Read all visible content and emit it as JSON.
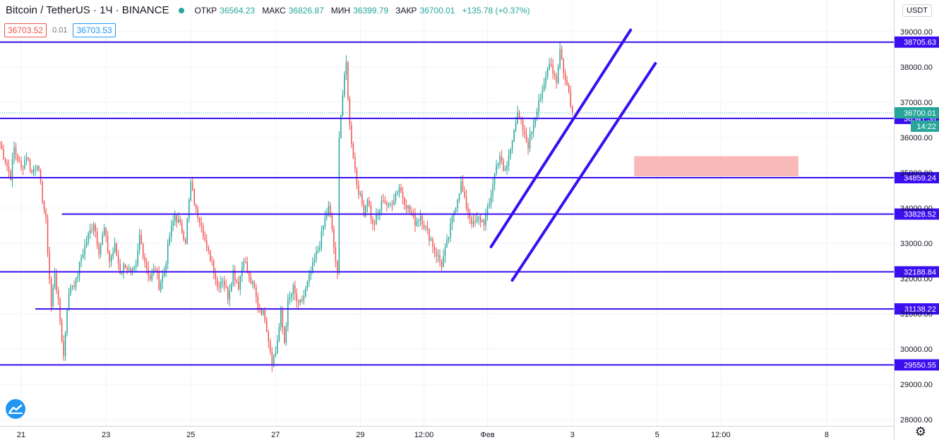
{
  "header": {
    "symbol": "Bitcoin / TetherUS · 1Ч · BINANCE",
    "open_label": "ОТКР",
    "open": "36564.23",
    "high_label": "МАКС",
    "high": "36826.87",
    "low_label": "МИН",
    "low": "36399.79",
    "close_label": "ЗАКР",
    "close": "36700.01",
    "change": "+135.78 (+0.37%)"
  },
  "quote": {
    "bid": "36703.52",
    "spread": "0.01",
    "ask": "36703.53"
  },
  "currency": "USDT",
  "colors": {
    "up": "#26a69a",
    "down": "#ef5350",
    "level": "#3a0ef0",
    "zone": "#f9b5b5",
    "last": "#26a69a"
  },
  "icons": {
    "logo": "tradingview-logo-icon",
    "settings": "gear-icon"
  },
  "chart_data": {
    "type": "candlestick",
    "symbol": "BTCUSDT",
    "interval": "1h",
    "ylim": [
      27800,
      39800
    ],
    "y_ticks": [
      28000,
      29000,
      30000,
      31000,
      32000,
      33000,
      34000,
      35000,
      36000,
      37000,
      38000,
      39000
    ],
    "x_tick_labels": [
      "21",
      "23",
      "25",
      "27",
      "29",
      "12:00",
      "Фев",
      "3",
      "5",
      "12:00",
      "8"
    ],
    "x_tick_hours": [
      0,
      48,
      96,
      144,
      192,
      228,
      264,
      312,
      360,
      396,
      456
    ],
    "x_range_hours": [
      -12,
      494
    ],
    "last_price": "36700.01",
    "countdown": "14:22",
    "levels": [
      {
        "price": 38705.63,
        "label": "38705.63",
        "start_hour": null
      },
      {
        "price": 36541.58,
        "label": "36541.58",
        "start_hour": null
      },
      {
        "price": 34859.24,
        "label": "34859.24",
        "start_hour": null
      },
      {
        "price": 33828.52,
        "label": "33828.52",
        "start_hour": 23
      },
      {
        "price": 32188.84,
        "label": "32188.84",
        "start_hour": null
      },
      {
        "price": 31138.22,
        "label": "31138.22",
        "start_hour": 8
      },
      {
        "price": 29550.55,
        "label": "29550.55",
        "start_hour": null
      }
    ],
    "channel": [
      {
        "x1": 266,
        "y1": 32900,
        "x2": 345,
        "y2": 39050
      },
      {
        "x1": 278,
        "y1": 31950,
        "x2": 359,
        "y2": 38100
      }
    ],
    "zone": {
      "x1": 347,
      "x2": 440,
      "y1": 34900,
      "y2": 35470
    },
    "anchors": [
      [
        -12,
        35800
      ],
      [
        -6,
        34900
      ],
      [
        -4,
        35700
      ],
      [
        0,
        35100
      ],
      [
        3,
        35500
      ],
      [
        6,
        35000
      ],
      [
        9,
        35300
      ],
      [
        14,
        33600
      ],
      [
        17,
        31200
      ],
      [
        19,
        32200
      ],
      [
        21,
        31300
      ],
      [
        24,
        29800
      ],
      [
        26,
        31200
      ],
      [
        28,
        31800
      ],
      [
        31,
        31900
      ],
      [
        34,
        32600
      ],
      [
        38,
        33200
      ],
      [
        41,
        33600
      ],
      [
        44,
        32800
      ],
      [
        47,
        33400
      ],
      [
        50,
        32500
      ],
      [
        53,
        32900
      ],
      [
        56,
        32200
      ],
      [
        59,
        32400
      ],
      [
        62,
        32100
      ],
      [
        65,
        32300
      ],
      [
        67,
        33200
      ],
      [
        70,
        32500
      ],
      [
        73,
        32000
      ],
      [
        76,
        32300
      ],
      [
        78,
        31800
      ],
      [
        81,
        32200
      ],
      [
        84,
        33200
      ],
      [
        87,
        33800
      ],
      [
        90,
        33500
      ],
      [
        93,
        33100
      ],
      [
        96,
        34700
      ],
      [
        99,
        33900
      ],
      [
        102,
        33600
      ],
      [
        105,
        32800
      ],
      [
        108,
        32500
      ],
      [
        111,
        31800
      ],
      [
        114,
        32000
      ],
      [
        117,
        31500
      ],
      [
        120,
        32200
      ],
      [
        123,
        31800
      ],
      [
        126,
        32600
      ],
      [
        129,
        32000
      ],
      [
        132,
        31700
      ],
      [
        134,
        31200
      ],
      [
        136,
        31100
      ],
      [
        138,
        30900
      ],
      [
        140,
        30300
      ],
      [
        142,
        29650
      ],
      [
        144,
        29900
      ],
      [
        147,
        31000
      ],
      [
        149,
        30200
      ],
      [
        151,
        31300
      ],
      [
        154,
        31700
      ],
      [
        157,
        31200
      ],
      [
        160,
        31500
      ],
      [
        163,
        32000
      ],
      [
        166,
        32500
      ],
      [
        169,
        33000
      ],
      [
        172,
        33700
      ],
      [
        174,
        34000
      ],
      [
        176,
        33400
      ],
      [
        178,
        32400
      ],
      [
        179,
        32100
      ],
      [
        180,
        36100
      ],
      [
        182,
        37200
      ],
      [
        184,
        38100
      ],
      [
        186,
        36300
      ],
      [
        188,
        35500
      ],
      [
        190,
        34700
      ],
      [
        192,
        34300
      ],
      [
        194,
        33900
      ],
      [
        196,
        34300
      ],
      [
        199,
        33500
      ],
      [
        202,
        33800
      ],
      [
        205,
        34300
      ],
      [
        208,
        34000
      ],
      [
        211,
        34300
      ],
      [
        214,
        34600
      ],
      [
        217,
        34200
      ],
      [
        220,
        33900
      ],
      [
        223,
        33600
      ],
      [
        226,
        33800
      ],
      [
        229,
        33400
      ],
      [
        232,
        33100
      ],
      [
        234,
        32800
      ],
      [
        236,
        32600
      ],
      [
        238,
        32400
      ],
      [
        240,
        32800
      ],
      [
        242,
        33200
      ],
      [
        244,
        33700
      ],
      [
        247,
        34300
      ],
      [
        249,
        34700
      ],
      [
        251,
        34200
      ],
      [
        253,
        33900
      ],
      [
        256,
        33500
      ],
      [
        259,
        33700
      ],
      [
        262,
        33600
      ],
      [
        265,
        34100
      ],
      [
        267,
        34700
      ],
      [
        269,
        35200
      ],
      [
        271,
        35500
      ],
      [
        273,
        35000
      ],
      [
        275,
        35200
      ],
      [
        277,
        35700
      ],
      [
        279,
        36300
      ],
      [
        281,
        36600
      ],
      [
        283,
        36400
      ],
      [
        285,
        36000
      ],
      [
        287,
        35800
      ],
      [
        289,
        36200
      ],
      [
        291,
        36600
      ],
      [
        293,
        37100
      ],
      [
        295,
        37200
      ],
      [
        297,
        37700
      ],
      [
        299,
        38200
      ],
      [
        301,
        37900
      ],
      [
        303,
        37600
      ],
      [
        305,
        38500
      ],
      [
        306,
        38200
      ],
      [
        308,
        37600
      ],
      [
        310,
        37300
      ],
      [
        312,
        36700
      ]
    ]
  }
}
